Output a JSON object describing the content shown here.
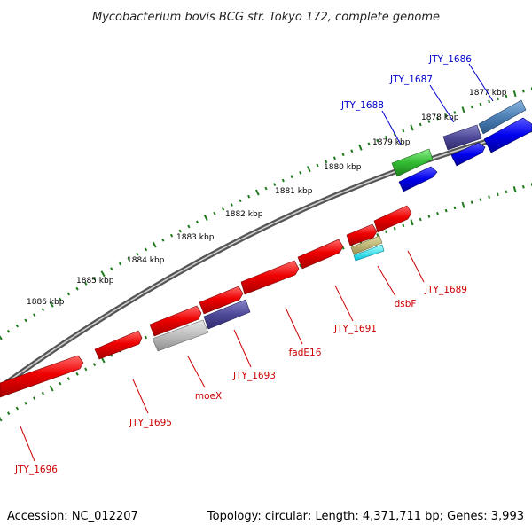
{
  "title": "Mycobacterium bovis BCG str. Tokyo 172, complete genome",
  "footer": {
    "accession": "Accession: NC_012207",
    "summary": "Topology: circular; Length: 4,371,711 bp; Genes: 3,993"
  },
  "colors": {
    "forward_label": "#0000cc",
    "reverse_label": "#cc0000",
    "tick": "#1e7a1e",
    "backbone": "#777777"
  },
  "scale_labels": [
    "1877 kbp",
    "1878 kbp",
    "1879 kbp",
    "1880 kbp",
    "1881 kbp",
    "1882 kbp",
    "1883 kbp",
    "1884 kbp",
    "1885 kbp",
    "1886 kbp"
  ],
  "forward_gene_labels": [
    "JTY_1686",
    "JTY_1687",
    "JTY_1688"
  ],
  "reverse_gene_labels": [
    "JTY_1689",
    "dsbF",
    "JTY_1691",
    "fadE16",
    "JTY_1693",
    "moeX",
    "JTY_1695",
    "JTY_1696"
  ]
}
